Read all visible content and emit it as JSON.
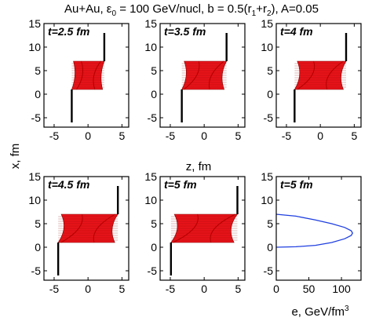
{
  "figure": {
    "title_parts": {
      "pre": "Au+Au, ε",
      "sub": "0",
      "post": " = 100 GeV/nucl, b = 0.5(r",
      "sub1": "1",
      "mid": "+r",
      "sub2": "2",
      "end": "), A=0.05"
    },
    "y_label": "x, fm",
    "shared_x_label": "z, fm",
    "energy_x_label_base": "e, GeV/fm",
    "energy_x_label_sup": "3"
  },
  "chart_data": [
    {
      "type": "area",
      "time_label": "t=2.5 fm",
      "xlabel": "",
      "ylabel": "x, fm",
      "xlim": [
        -6.5,
        6
      ],
      "ylim": [
        -7,
        15
      ],
      "xticks": [
        -5,
        0,
        5
      ],
      "yticks": [
        -5,
        0,
        5,
        10,
        15
      ],
      "fill_color": "#e8141a",
      "left_edge_z": -2.4,
      "left_edge_x": [
        -6,
        1
      ],
      "right_edge_z": 2.4,
      "right_edge_x": [
        7,
        13
      ],
      "bulge": 0.25,
      "slab_x_range": [
        1,
        7
      ],
      "surface": {
        "x": [
          1,
          7
        ],
        "left_z": [
          -1.7,
          -1.0
        ],
        "right_z": [
          1.0,
          1.9
        ]
      }
    },
    {
      "type": "area",
      "time_label": "t=3.5 fm",
      "xlabel": "",
      "ylabel": "",
      "xlim": [
        -6.5,
        6
      ],
      "ylim": [
        -7,
        15
      ],
      "xticks": [
        -5,
        0,
        5
      ],
      "yticks": [
        -5,
        0,
        5,
        10,
        15
      ],
      "fill_color": "#e8141a",
      "left_edge_z": -3.3,
      "left_edge_x": [
        -6,
        1
      ],
      "right_edge_z": 3.3,
      "right_edge_x": [
        7,
        13
      ],
      "bulge": 0.35,
      "slab_x_range": [
        1,
        7
      ],
      "surface": {
        "x": [
          1,
          7
        ],
        "left_z": [
          -3.0,
          -0.8
        ],
        "right_z": [
          0.8,
          2.9
        ]
      }
    },
    {
      "type": "area",
      "time_label": "t=4 fm",
      "xlabel": "",
      "ylabel": "",
      "xlim": [
        -6.5,
        6
      ],
      "ylim": [
        -7,
        15
      ],
      "xticks": [
        -5,
        0,
        5
      ],
      "yticks": [
        -5,
        0,
        5,
        10,
        15
      ],
      "fill_color": "#e8141a",
      "left_edge_z": -3.8,
      "left_edge_x": [
        -6,
        1
      ],
      "right_edge_z": 3.8,
      "right_edge_x": [
        7,
        13
      ],
      "bulge": 0.4,
      "slab_x_range": [
        1,
        7
      ],
      "surface": {
        "x": [
          1,
          7
        ],
        "left_z": [
          -3.4,
          -1.0
        ],
        "right_z": [
          1.0,
          3.4
        ]
      }
    },
    {
      "type": "area",
      "time_label": "t=4.5 fm",
      "xlabel": "",
      "ylabel": "x, fm",
      "xlim": [
        -6.5,
        6
      ],
      "ylim": [
        -7,
        15
      ],
      "xticks": [
        -5,
        0,
        5
      ],
      "yticks": [
        -5,
        0,
        5,
        10,
        15
      ],
      "fill_color": "#e8141a",
      "left_edge_z": -4.4,
      "left_edge_x": [
        -6,
        1
      ],
      "right_edge_z": 4.4,
      "right_edge_x": [
        7,
        13
      ],
      "bulge": 0.45,
      "slab_x_range": [
        1,
        7
      ],
      "surface": {
        "x": [
          1,
          7
        ],
        "left_z": [
          -4.0,
          -0.9
        ],
        "right_z": [
          0.9,
          4.0
        ]
      }
    },
    {
      "type": "area",
      "time_label": "t=5 fm",
      "xlabel": "",
      "ylabel": "",
      "xlim": [
        -6.5,
        6
      ],
      "ylim": [
        -7,
        15
      ],
      "xticks": [
        -5,
        0,
        5
      ],
      "yticks": [
        -5,
        0,
        5,
        10,
        15
      ],
      "fill_color": "#e8141a",
      "left_edge_z": -4.9,
      "left_edge_x": [
        -6,
        1
      ],
      "right_edge_z": 4.9,
      "right_edge_x": [
        7,
        13
      ],
      "bulge": 0.5,
      "slab_x_range": [
        1,
        7
      ],
      "surface": {
        "x": [
          1,
          7
        ],
        "left_z": [
          -4.6,
          -1.0
        ],
        "right_z": [
          1.0,
          4.6
        ]
      }
    },
    {
      "type": "line",
      "time_label": "t=5 fm",
      "xlabel": "e, GeV/fm³",
      "ylabel": "",
      "xlim": [
        0,
        130
      ],
      "ylim": [
        -7,
        15
      ],
      "xticks": [
        0,
        50,
        100
      ],
      "yticks": [
        -5,
        0,
        5,
        10,
        15
      ],
      "line_color": "#1f3fe0",
      "series": [
        {
          "x": [
            0,
            30,
            60,
            85,
            105,
            115,
            117,
            115,
            105,
            85,
            60,
            30,
            0
          ],
          "y": [
            7,
            6.6,
            5.8,
            5.0,
            4.2,
            3.5,
            3.0,
            2.5,
            1.8,
            1.0,
            0.4,
            0.1,
            0
          ]
        }
      ]
    }
  ]
}
